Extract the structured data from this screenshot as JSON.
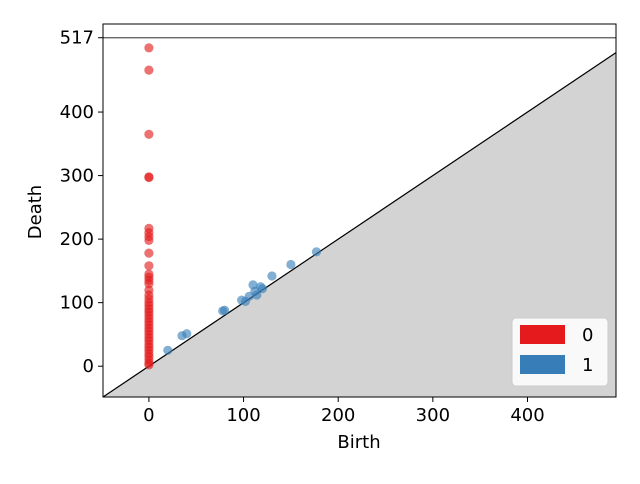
{
  "chart_data": {
    "type": "scatter",
    "title": "",
    "xlabel": "Birth",
    "ylabel": "Death",
    "xlim": [
      -48.5,
      493.5
    ],
    "ylim": [
      -48.5,
      538.6
    ],
    "x_ticks": [
      0,
      100,
      200,
      300,
      400
    ],
    "y_ticks": [
      0,
      100,
      200,
      300,
      400,
      517
    ],
    "infinity_line": 517,
    "legend": {
      "position": "bottom-right",
      "entries": [
        "0",
        "1"
      ]
    },
    "series": [
      {
        "name": "0",
        "color": "#e41a1c",
        "points": [
          [
            0,
            501
          ],
          [
            0,
            466
          ],
          [
            0,
            365
          ],
          [
            0,
            298
          ],
          [
            0,
            297
          ],
          [
            0,
            217
          ],
          [
            0,
            210
          ],
          [
            0,
            204
          ],
          [
            0,
            198
          ],
          [
            0,
            178
          ],
          [
            0,
            158
          ],
          [
            0,
            145
          ],
          [
            0,
            140
          ],
          [
            0,
            135
          ],
          [
            0,
            130
          ],
          [
            0,
            120
          ],
          [
            0,
            112
          ],
          [
            0,
            106
          ],
          [
            0,
            100
          ],
          [
            0,
            95
          ],
          [
            0,
            90
          ],
          [
            0,
            85
          ],
          [
            0,
            80
          ],
          [
            0,
            75
          ],
          [
            0,
            70
          ],
          [
            0,
            65
          ],
          [
            0,
            60
          ],
          [
            0,
            55
          ],
          [
            0,
            50
          ],
          [
            0,
            45
          ],
          [
            0,
            40
          ],
          [
            0,
            35
          ],
          [
            0,
            30
          ],
          [
            0,
            25
          ],
          [
            0,
            20
          ],
          [
            0,
            15
          ],
          [
            0,
            10
          ],
          [
            0,
            5
          ],
          [
            0,
            2
          ]
        ]
      },
      {
        "name": "1",
        "color": "#377eb8",
        "points": [
          [
            20,
            25
          ],
          [
            35,
            48
          ],
          [
            40,
            51
          ],
          [
            78,
            87
          ],
          [
            80,
            88
          ],
          [
            98,
            104
          ],
          [
            102,
            102
          ],
          [
            106,
            110
          ],
          [
            110,
            128
          ],
          [
            112,
            118
          ],
          [
            114,
            112
          ],
          [
            118,
            125
          ],
          [
            120,
            122
          ],
          [
            130,
            142
          ],
          [
            150,
            160
          ],
          [
            177,
            180
          ]
        ]
      }
    ]
  }
}
